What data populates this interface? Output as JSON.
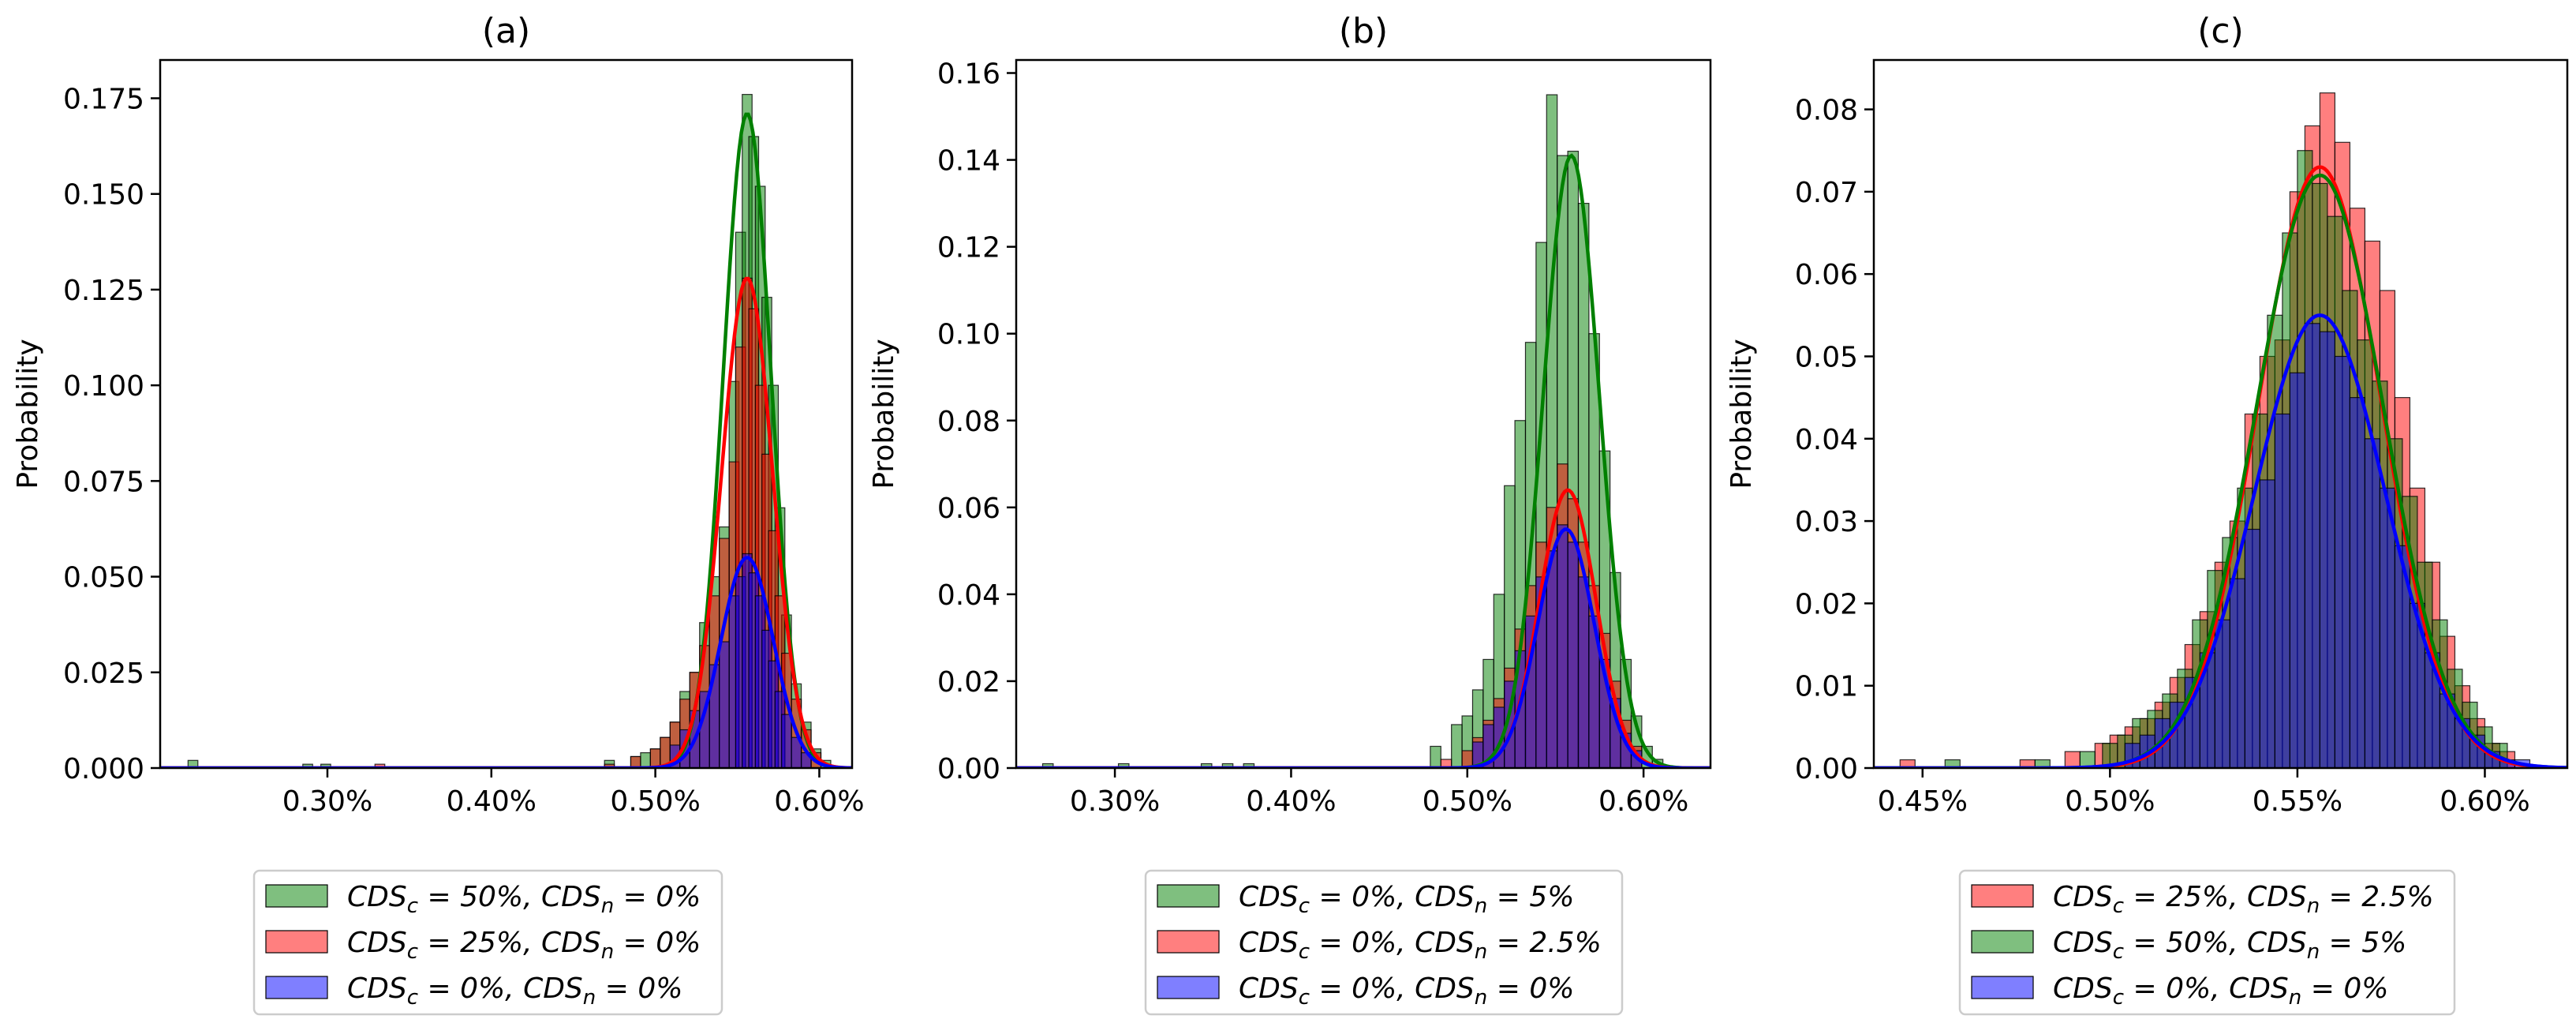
{
  "chart_data": [
    {
      "type": "histogram",
      "title": "(a)",
      "ylabel": "Probability",
      "xlabel": "",
      "x_axis_format": "percent",
      "xlim": [
        0.198,
        0.62
      ],
      "ylim": [
        0,
        0.185
      ],
      "x_ticks": [
        0.3,
        0.4,
        0.5,
        0.6
      ],
      "x_tick_labels": [
        "0.30%",
        "0.40%",
        "0.50%",
        "0.60%"
      ],
      "y_ticks": [
        0,
        0.025,
        0.05,
        0.075,
        0.1,
        0.125,
        0.15,
        0.175
      ],
      "y_tick_labels": [
        "0.000",
        "0.025",
        "0.050",
        "0.075",
        "0.100",
        "0.125",
        "0.150",
        "0.175"
      ],
      "grid": false,
      "legend_position": "below",
      "series": [
        {
          "name": "CDS_c = 50%, CDS_n = 0%",
          "color": "#008000",
          "kde_mode": 0.556,
          "kde_peak": 0.171,
          "kde_sigma": 0.0145,
          "bins": [
            [
              0.218,
              0.002
            ],
            [
              0.288,
              0.001
            ],
            [
              0.299,
              0.001
            ],
            [
              0.472,
              0.002
            ],
            [
              0.488,
              0.003
            ],
            [
              0.494,
              0.004
            ],
            [
              0.5,
              0.005
            ],
            [
              0.506,
              0.008
            ],
            [
              0.512,
              0.012
            ],
            [
              0.518,
              0.02
            ],
            [
              0.524,
              0.025
            ],
            [
              0.53,
              0.038
            ],
            [
              0.536,
              0.05
            ],
            [
              0.542,
              0.063
            ],
            [
              0.548,
              0.101
            ],
            [
              0.552,
              0.14
            ],
            [
              0.556,
              0.176
            ],
            [
              0.56,
              0.165
            ],
            [
              0.564,
              0.152
            ],
            [
              0.568,
              0.123
            ],
            [
              0.572,
              0.1
            ],
            [
              0.576,
              0.068
            ],
            [
              0.58,
              0.04
            ],
            [
              0.586,
              0.022
            ],
            [
              0.592,
              0.012
            ],
            [
              0.598,
              0.005
            ],
            [
              0.604,
              0.002
            ]
          ]
        },
        {
          "name": "CDS_c = 25%, CDS_n = 0%",
          "color": "#ff0000",
          "kde_mode": 0.556,
          "kde_peak": 0.128,
          "kde_sigma": 0.0155,
          "bins": [
            [
              0.332,
              0.001
            ],
            [
              0.472,
              0.001
            ],
            [
              0.488,
              0.003
            ],
            [
              0.5,
              0.005
            ],
            [
              0.506,
              0.008
            ],
            [
              0.512,
              0.012
            ],
            [
              0.518,
              0.018
            ],
            [
              0.524,
              0.025
            ],
            [
              0.53,
              0.032
            ],
            [
              0.536,
              0.045
            ],
            [
              0.542,
              0.06
            ],
            [
              0.548,
              0.08
            ],
            [
              0.552,
              0.11
            ],
            [
              0.556,
              0.128
            ],
            [
              0.56,
              0.12
            ],
            [
              0.564,
              0.1
            ],
            [
              0.568,
              0.082
            ],
            [
              0.572,
              0.062
            ],
            [
              0.576,
              0.045
            ],
            [
              0.58,
              0.03
            ],
            [
              0.586,
              0.018
            ],
            [
              0.592,
              0.01
            ],
            [
              0.598,
              0.004
            ]
          ]
        },
        {
          "name": "CDS_c = 0%, CDS_n = 0%",
          "color": "#0000ff",
          "kde_mode": 0.556,
          "kde_peak": 0.055,
          "kde_sigma": 0.016,
          "bins": [
            [
              0.512,
              0.006
            ],
            [
              0.518,
              0.01
            ],
            [
              0.524,
              0.015
            ],
            [
              0.53,
              0.02
            ],
            [
              0.536,
              0.027
            ],
            [
              0.542,
              0.033
            ],
            [
              0.548,
              0.045
            ],
            [
              0.552,
              0.05
            ],
            [
              0.556,
              0.056
            ],
            [
              0.56,
              0.051
            ],
            [
              0.564,
              0.045
            ],
            [
              0.568,
              0.036
            ],
            [
              0.572,
              0.028
            ],
            [
              0.576,
              0.02
            ],
            [
              0.58,
              0.014
            ],
            [
              0.586,
              0.008
            ],
            [
              0.592,
              0.004
            ]
          ]
        }
      ]
    },
    {
      "type": "histogram",
      "title": "(b)",
      "ylabel": "Probability",
      "xlabel": "",
      "x_axis_format": "percent",
      "xlim": [
        0.244,
        0.638
      ],
      "ylim": [
        0,
        0.163
      ],
      "x_ticks": [
        0.3,
        0.4,
        0.5,
        0.6
      ],
      "x_tick_labels": [
        "0.30%",
        "0.40%",
        "0.50%",
        "0.60%"
      ],
      "y_ticks": [
        0,
        0.02,
        0.04,
        0.06,
        0.08,
        0.1,
        0.12,
        0.14,
        0.16
      ],
      "y_tick_labels": [
        "0.00",
        "0.02",
        "0.04",
        "0.06",
        "0.08",
        "0.10",
        "0.12",
        "0.14",
        "0.16"
      ],
      "grid": false,
      "legend_position": "below",
      "series": [
        {
          "name": "CDS_c = 0%, CDS_n = 5%",
          "color": "#008000",
          "kde_mode": 0.559,
          "kde_peak": 0.141,
          "kde_sigma": 0.016,
          "bins": [
            [
              0.262,
              0.001
            ],
            [
              0.305,
              0.001
            ],
            [
              0.352,
              0.001
            ],
            [
              0.364,
              0.001
            ],
            [
              0.376,
              0.001
            ],
            [
              0.482,
              0.005
            ],
            [
              0.494,
              0.01
            ],
            [
              0.5,
              0.012
            ],
            [
              0.506,
              0.018
            ],
            [
              0.512,
              0.025
            ],
            [
              0.518,
              0.04
            ],
            [
              0.524,
              0.065
            ],
            [
              0.53,
              0.08
            ],
            [
              0.536,
              0.098
            ],
            [
              0.542,
              0.121
            ],
            [
              0.548,
              0.155
            ],
            [
              0.554,
              0.141
            ],
            [
              0.56,
              0.142
            ],
            [
              0.566,
              0.13
            ],
            [
              0.572,
              0.1
            ],
            [
              0.578,
              0.073
            ],
            [
              0.584,
              0.045
            ],
            [
              0.59,
              0.025
            ],
            [
              0.596,
              0.012
            ],
            [
              0.602,
              0.005
            ],
            [
              0.608,
              0.002
            ]
          ]
        },
        {
          "name": "CDS_c = 0%, CDS_n = 2.5%",
          "color": "#ff0000",
          "kde_mode": 0.557,
          "kde_peak": 0.064,
          "kde_sigma": 0.016,
          "bins": [
            [
              0.488,
              0.002
            ],
            [
              0.5,
              0.004
            ],
            [
              0.506,
              0.007
            ],
            [
              0.512,
              0.011
            ],
            [
              0.518,
              0.016
            ],
            [
              0.524,
              0.023
            ],
            [
              0.53,
              0.032
            ],
            [
              0.536,
              0.042
            ],
            [
              0.542,
              0.052
            ],
            [
              0.548,
              0.06
            ],
            [
              0.554,
              0.07
            ],
            [
              0.56,
              0.062
            ],
            [
              0.566,
              0.052
            ],
            [
              0.572,
              0.042
            ],
            [
              0.578,
              0.031
            ],
            [
              0.584,
              0.02
            ],
            [
              0.59,
              0.011
            ],
            [
              0.596,
              0.005
            ]
          ]
        },
        {
          "name": "CDS_c = 0%, CDS_n = 0%",
          "color": "#0000ff",
          "kde_mode": 0.556,
          "kde_peak": 0.055,
          "kde_sigma": 0.016,
          "bins": [
            [
              0.506,
              0.006
            ],
            [
              0.512,
              0.01
            ],
            [
              0.518,
              0.014
            ],
            [
              0.524,
              0.02
            ],
            [
              0.53,
              0.027
            ],
            [
              0.536,
              0.035
            ],
            [
              0.542,
              0.044
            ],
            [
              0.548,
              0.05
            ],
            [
              0.554,
              0.056
            ],
            [
              0.56,
              0.052
            ],
            [
              0.566,
              0.044
            ],
            [
              0.572,
              0.035
            ],
            [
              0.578,
              0.025
            ],
            [
              0.584,
              0.016
            ],
            [
              0.59,
              0.008
            ],
            [
              0.596,
              0.004
            ]
          ]
        }
      ]
    },
    {
      "type": "histogram",
      "title": "(c)",
      "ylabel": "Probability",
      "xlabel": "",
      "x_axis_format": "percent",
      "xlim": [
        0.437,
        0.622
      ],
      "ylim": [
        0,
        0.086
      ],
      "x_ticks": [
        0.45,
        0.5,
        0.55,
        0.6
      ],
      "x_tick_labels": [
        "0.45%",
        "0.50%",
        "0.55%",
        "0.60%"
      ],
      "y_ticks": [
        0,
        0.01,
        0.02,
        0.03,
        0.04,
        0.05,
        0.06,
        0.07,
        0.08
      ],
      "y_tick_labels": [
        "0.00",
        "0.01",
        "0.02",
        "0.03",
        "0.04",
        "0.05",
        "0.06",
        "0.07",
        "0.08"
      ],
      "grid": false,
      "legend_position": "below",
      "series": [
        {
          "name": "CDS_c = 25%, CDS_n = 2.5%",
          "color": "#ff0000",
          "kde_mode": 0.556,
          "kde_peak": 0.073,
          "kde_sigma": 0.0165,
          "bins": [
            [
              0.446,
              0.001
            ],
            [
              0.478,
              0.001
            ],
            [
              0.49,
              0.002
            ],
            [
              0.498,
              0.003
            ],
            [
              0.502,
              0.004
            ],
            [
              0.506,
              0.005
            ],
            [
              0.51,
              0.006
            ],
            [
              0.514,
              0.008
            ],
            [
              0.518,
              0.011
            ],
            [
              0.522,
              0.015
            ],
            [
              0.526,
              0.019
            ],
            [
              0.53,
              0.025
            ],
            [
              0.534,
              0.03
            ],
            [
              0.538,
              0.043
            ],
            [
              0.542,
              0.05
            ],
            [
              0.546,
              0.052
            ],
            [
              0.55,
              0.07
            ],
            [
              0.554,
              0.078
            ],
            [
              0.558,
              0.082
            ],
            [
              0.562,
              0.076
            ],
            [
              0.566,
              0.068
            ],
            [
              0.57,
              0.064
            ],
            [
              0.574,
              0.058
            ],
            [
              0.578,
              0.045
            ],
            [
              0.582,
              0.034
            ],
            [
              0.586,
              0.025
            ],
            [
              0.59,
              0.016
            ],
            [
              0.594,
              0.01
            ],
            [
              0.598,
              0.006
            ],
            [
              0.602,
              0.003
            ],
            [
              0.606,
              0.002
            ]
          ]
        },
        {
          "name": "CDS_c = 50%, CDS_n = 5%",
          "color": "#008000",
          "kde_mode": 0.556,
          "kde_peak": 0.072,
          "kde_sigma": 0.017,
          "bins": [
            [
              0.458,
              0.001
            ],
            [
              0.482,
              0.001
            ],
            [
              0.494,
              0.002
            ],
            [
              0.5,
              0.003
            ],
            [
              0.504,
              0.004
            ],
            [
              0.508,
              0.006
            ],
            [
              0.512,
              0.007
            ],
            [
              0.516,
              0.009
            ],
            [
              0.52,
              0.012
            ],
            [
              0.524,
              0.018
            ],
            [
              0.528,
              0.024
            ],
            [
              0.532,
              0.028
            ],
            [
              0.536,
              0.034
            ],
            [
              0.54,
              0.043
            ],
            [
              0.544,
              0.055
            ],
            [
              0.548,
              0.065
            ],
            [
              0.552,
              0.075
            ],
            [
              0.556,
              0.071
            ],
            [
              0.56,
              0.067
            ],
            [
              0.564,
              0.058
            ],
            [
              0.568,
              0.052
            ],
            [
              0.572,
              0.047
            ],
            [
              0.576,
              0.04
            ],
            [
              0.58,
              0.033
            ],
            [
              0.584,
              0.025
            ],
            [
              0.588,
              0.018
            ],
            [
              0.592,
              0.012
            ],
            [
              0.596,
              0.008
            ],
            [
              0.6,
              0.005
            ],
            [
              0.604,
              0.003
            ]
          ]
        },
        {
          "name": "CDS_c = 0%, CDS_n = 0%",
          "color": "#0000ff",
          "kde_mode": 0.556,
          "kde_peak": 0.055,
          "kde_sigma": 0.0175,
          "bins": [
            [
              0.506,
              0.003
            ],
            [
              0.51,
              0.004
            ],
            [
              0.514,
              0.006
            ],
            [
              0.518,
              0.008
            ],
            [
              0.522,
              0.011
            ],
            [
              0.526,
              0.014
            ],
            [
              0.53,
              0.018
            ],
            [
              0.534,
              0.023
            ],
            [
              0.538,
              0.029
            ],
            [
              0.542,
              0.035
            ],
            [
              0.546,
              0.043
            ],
            [
              0.55,
              0.048
            ],
            [
              0.554,
              0.054
            ],
            [
              0.558,
              0.053
            ],
            [
              0.562,
              0.05
            ],
            [
              0.566,
              0.045
            ],
            [
              0.57,
              0.04
            ],
            [
              0.574,
              0.034
            ],
            [
              0.578,
              0.027
            ],
            [
              0.582,
              0.02
            ],
            [
              0.586,
              0.014
            ],
            [
              0.59,
              0.009
            ],
            [
              0.594,
              0.006
            ],
            [
              0.598,
              0.004
            ],
            [
              0.602,
              0.002
            ],
            [
              0.606,
              0.001
            ],
            [
              0.61,
              0.001
            ]
          ]
        }
      ]
    }
  ]
}
